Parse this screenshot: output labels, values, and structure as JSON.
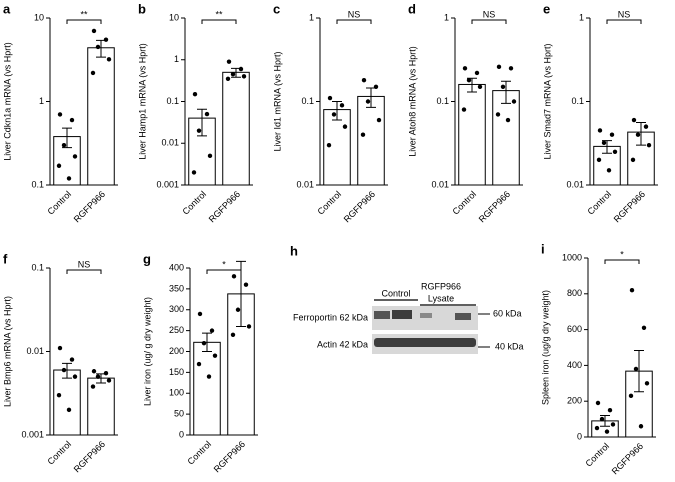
{
  "chart_data": [
    {
      "type": "bar",
      "panel": "a",
      "ylabel": "Liver Cdkn1a mRNA (vs Hprt)",
      "categories": [
        "Control",
        "RGFP966"
      ],
      "values": [
        0.38,
        4.4
      ],
      "errors": [
        0.1,
        1.0
      ],
      "points": [
        [
          0.7,
          0.6,
          0.3,
          0.22,
          0.17,
          0.12
        ],
        [
          7,
          5.5,
          4.5,
          3.2,
          2.2
        ]
      ],
      "ylim": [
        0.1,
        10
      ],
      "yticks": [
        0.1,
        1,
        10
      ],
      "log": true,
      "significance": "**",
      "color": "#ffffff"
    },
    {
      "type": "bar",
      "panel": "b",
      "ylabel": "Liver Hamp1 mRNA (vs Hprt)",
      "categories": [
        "Control",
        "RGFP966"
      ],
      "values": [
        0.04,
        0.5
      ],
      "errors": [
        0.025,
        0.12
      ],
      "points": [
        [
          0.15,
          0.05,
          0.02,
          0.005,
          0.002
        ],
        [
          0.9,
          0.6,
          0.45,
          0.4,
          0.35
        ]
      ],
      "ylim": [
        0.001,
        10
      ],
      "yticks": [
        0.001,
        0.01,
        0.1,
        1,
        10
      ],
      "log": true,
      "significance": "**",
      "color": "#ffffff"
    },
    {
      "type": "bar",
      "panel": "c",
      "ylabel": "Liver Id1 mRNA (vs Hprt)",
      "categories": [
        "Control",
        "RGFP966"
      ],
      "values": [
        0.08,
        0.115
      ],
      "errors": [
        0.02,
        0.03
      ],
      "points": [
        [
          0.11,
          0.09,
          0.07,
          0.05,
          0.03
        ],
        [
          0.18,
          0.15,
          0.1,
          0.06,
          0.04
        ]
      ],
      "ylim": [
        0.01,
        1
      ],
      "yticks": [
        0.01,
        0.1,
        1
      ],
      "log": true,
      "significance": "NS",
      "color": "#ffffff"
    },
    {
      "type": "bar",
      "panel": "d",
      "ylabel": "Liver Atoh8 mRNA (vs Hprt)",
      "categories": [
        "Control",
        "RGFP966"
      ],
      "values": [
        0.16,
        0.135
      ],
      "errors": [
        0.03,
        0.04
      ],
      "points": [
        [
          0.25,
          0.22,
          0.18,
          0.15,
          0.08
        ],
        [
          0.26,
          0.25,
          0.15,
          0.1,
          0.07,
          0.06
        ]
      ],
      "ylim": [
        0.01,
        1
      ],
      "yticks": [
        0.01,
        0.1,
        1
      ],
      "log": true,
      "significance": "NS",
      "color": "#ffffff"
    },
    {
      "type": "bar",
      "panel": "e",
      "ylabel": "Liver Smad7 mRNA (vs Hprt)",
      "categories": [
        "Control",
        "RGFP966"
      ],
      "values": [
        0.029,
        0.043
      ],
      "errors": [
        0.005,
        0.013
      ],
      "points": [
        [
          0.045,
          0.04,
          0.032,
          0.025,
          0.02,
          0.015
        ],
        [
          0.06,
          0.05,
          0.04,
          0.03,
          0.02
        ]
      ],
      "ylim": [
        0.01,
        1
      ],
      "yticks": [
        0.01,
        0.1,
        1
      ],
      "log": true,
      "significance": "NS",
      "color": "#ffffff"
    },
    {
      "type": "bar",
      "panel": "f",
      "ylabel": "Liver Bmp6 mRNA (vs Hprt)",
      "categories": [
        "Control",
        "RGFP966"
      ],
      "values": [
        0.006,
        0.0048
      ],
      "errors": [
        0.0012,
        0.0006
      ],
      "points": [
        [
          0.011,
          0.008,
          0.006,
          0.005,
          0.003,
          0.002
        ],
        [
          0.0058,
          0.0055,
          0.005,
          0.0045,
          0.0038
        ]
      ],
      "ylim": [
        0.001,
        0.1
      ],
      "yticks": [
        0.001,
        0.01,
        0.1
      ],
      "log": true,
      "significance": "NS",
      "color": "#ffffff"
    },
    {
      "type": "bar",
      "panel": "g",
      "ylabel": "Liver iron (ug/ g dry weight)",
      "categories": [
        "Control",
        "RGFP966"
      ],
      "values": [
        222,
        338
      ],
      "errors": [
        22,
        78
      ],
      "points": [
        [
          290,
          250,
          220,
          190,
          170,
          140
        ],
        [
          380,
          360,
          300,
          260,
          240
        ]
      ],
      "ylim": [
        0,
        400
      ],
      "yticks": [
        0,
        50,
        100,
        150,
        200,
        250,
        300,
        350,
        400
      ],
      "log": false,
      "significance": "*",
      "color": "#ffffff"
    },
    {
      "type": "bar",
      "panel": "i",
      "ylabel": "Spleen iron (ug/g dry weight)",
      "categories": [
        "Control",
        "RGFP966"
      ],
      "values": [
        90,
        368
      ],
      "errors": [
        30,
        115
      ],
      "points": [
        [
          190,
          150,
          100,
          70,
          50,
          30
        ],
        [
          820,
          610,
          380,
          300,
          230,
          60
        ]
      ],
      "ylim": [
        0,
        1000
      ],
      "yticks": [
        0,
        200,
        400,
        600,
        800,
        1000
      ],
      "log": false,
      "significance": "*",
      "color": "#ffffff"
    }
  ],
  "blot": {
    "panel": "h",
    "group1": "Control",
    "group2": "RGFP966",
    "group2_sub": "Lysate",
    "row1": "Ferroportin 62 kDa",
    "row2": "Actin 42 kDa",
    "marker1": "60 kDa",
    "marker2": "40 kDa"
  }
}
